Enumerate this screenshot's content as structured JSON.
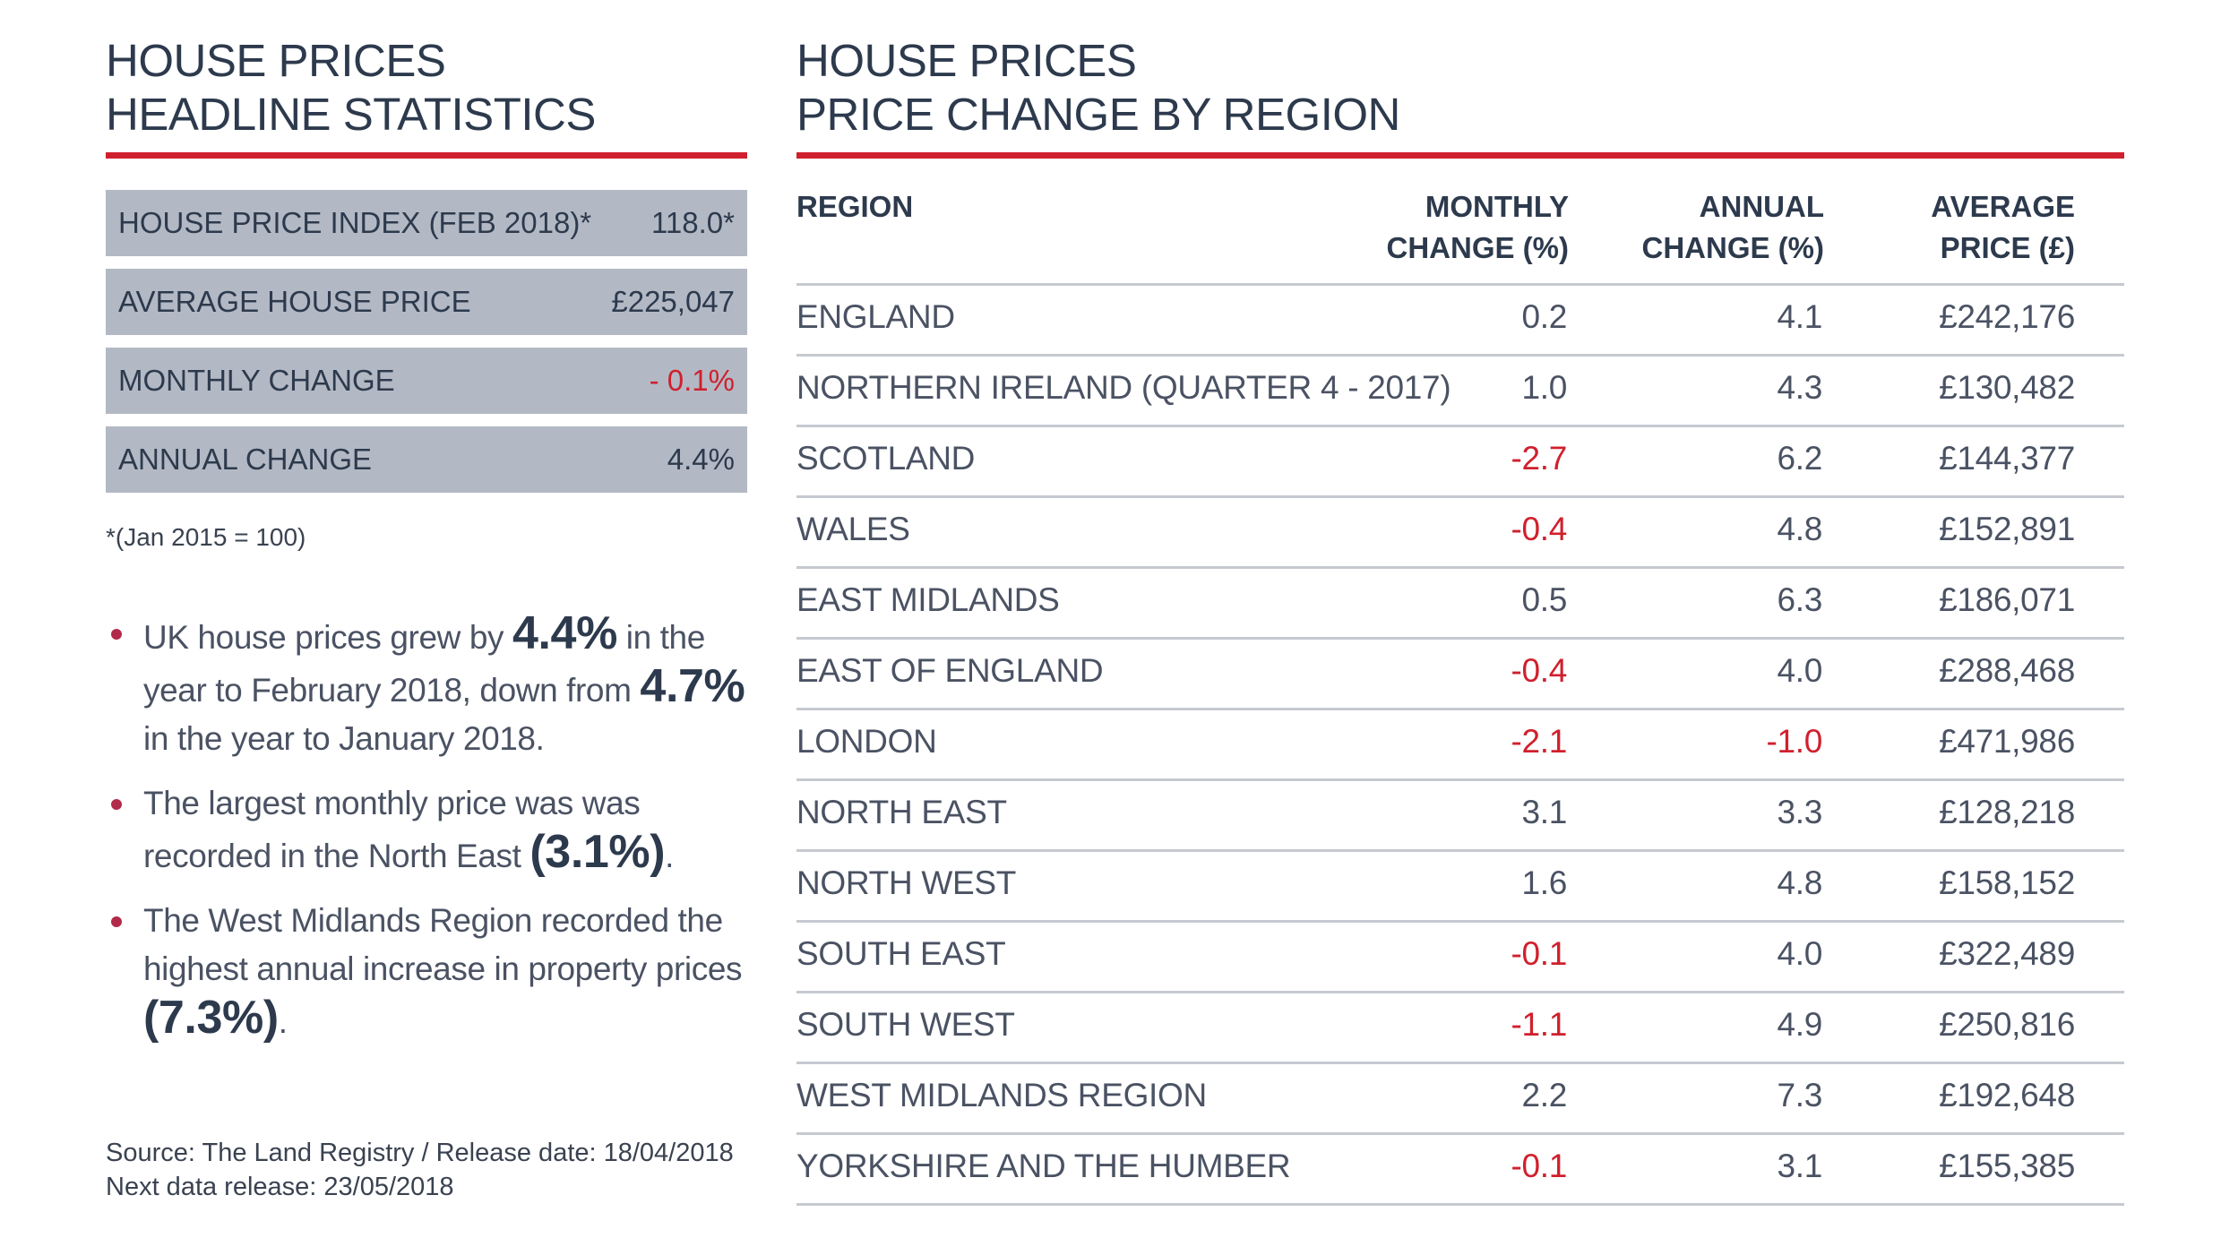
{
  "left": {
    "title_line1": "HOUSE PRICES",
    "title_line2": "HEADLINE STATISTICS",
    "stats": [
      {
        "label": "HOUSE PRICE INDEX (FEB 2018)*",
        "value": "118.0*",
        "negative": false
      },
      {
        "label": "AVERAGE HOUSE PRICE",
        "value": "£225,047",
        "negative": false
      },
      {
        "label": "MONTHLY CHANGE",
        "value": "- 0.1%",
        "negative": true
      },
      {
        "label": "ANNUAL CHANGE",
        "value": "4.4%",
        "negative": false
      }
    ],
    "footnote": "*(Jan 2015 = 100)",
    "bullets": {
      "b1_a": "UK house prices grew by ",
      "b1_big1": "4.4%",
      "b1_b": " in the year to February 2018, down from ",
      "b1_big2": "4.7%",
      "b1_c": " in the year to January 2018.",
      "b2_a": "The largest monthly price was was recorded in the North East ",
      "b2_big": "(3.1%)",
      "b2_b": ".",
      "b3_a": "The West Midlands Region recorded the highest annual increase in property prices ",
      "b3_big": "(7.3%)",
      "b3_b": "."
    },
    "source_line1": "Source: The Land Registry / Release date: 18/04/2018",
    "source_line2": "Next data release: 23/05/2018"
  },
  "right": {
    "title_line1": "HOUSE PRICES",
    "title_line2": "PRICE CHANGE BY REGION",
    "headers": {
      "region": "REGION",
      "monthly_1": "MONTHLY",
      "monthly_2": "CHANGE (%)",
      "annual_1": "ANNUAL",
      "annual_2": "CHANGE (%)",
      "avg_1": "AVERAGE",
      "avg_2": "PRICE (£)"
    },
    "rows": [
      {
        "region": "ENGLAND",
        "monthly": "0.2",
        "annual": "4.1",
        "avg": "£242,176"
      },
      {
        "region": "NORTHERN IRELAND (QUARTER 4 - 2017)",
        "monthly": "1.0",
        "annual": "4.3",
        "avg": "£130,482"
      },
      {
        "region": "SCOTLAND",
        "monthly": "-2.7",
        "annual": "6.2",
        "avg": "£144,377"
      },
      {
        "region": "WALES",
        "monthly": "-0.4",
        "annual": "4.8",
        "avg": "£152,891"
      },
      {
        "region": "EAST MIDLANDS",
        "monthly": "0.5",
        "annual": "6.3",
        "avg": "£186,071"
      },
      {
        "region": "EAST OF ENGLAND",
        "monthly": "-0.4",
        "annual": "4.0",
        "avg": "£288,468"
      },
      {
        "region": "LONDON",
        "monthly": "-2.1",
        "annual": "-1.0",
        "avg": "£471,986"
      },
      {
        "region": "NORTH EAST",
        "monthly": "3.1",
        "annual": "3.3",
        "avg": "£128,218"
      },
      {
        "region": "NORTH WEST",
        "monthly": "1.6",
        "annual": "4.8",
        "avg": "£158,152"
      },
      {
        "region": "SOUTH EAST",
        "monthly": "-0.1",
        "annual": "4.0",
        "avg": "£322,489"
      },
      {
        "region": "SOUTH WEST",
        "monthly": "-1.1",
        "annual": "4.9",
        "avg": "£250,816"
      },
      {
        "region": "WEST MIDLANDS REGION",
        "monthly": "2.2",
        "annual": "7.3",
        "avg": "£192,648"
      },
      {
        "region": "YORKSHIRE AND THE HUMBER",
        "monthly": "-0.1",
        "annual": "3.1",
        "avg": "£155,385"
      }
    ]
  },
  "colors": {
    "accent_red": "#d0202d",
    "panel_grey": "#b3b9c4",
    "navy": "#2d3a4d",
    "bullet_dot": "#b22a4a"
  }
}
